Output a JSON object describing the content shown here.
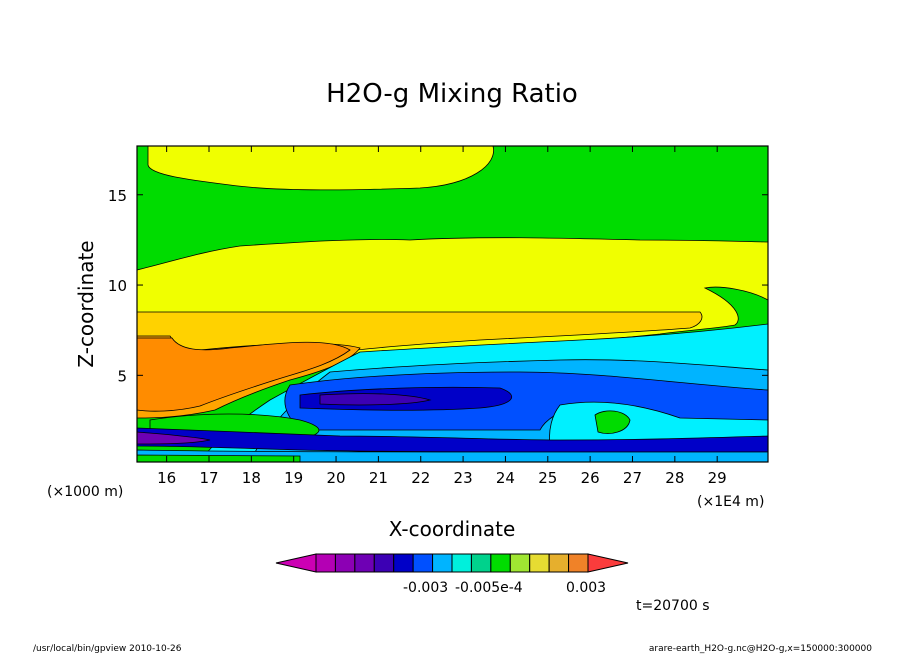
{
  "chart_data": {
    "type": "contour",
    "title": "H2O-g Mixing Ratio",
    "xlabel": "X-coordinate",
    "ylabel": "Z-coordinate",
    "x_unit_left": "(×1000 m)",
    "x_unit_right": "(×1E4 m)",
    "x_ticks": [
      "16",
      "17",
      "18",
      "19",
      "20",
      "21",
      "22",
      "23",
      "24",
      "25",
      "26",
      "27",
      "28",
      "29"
    ],
    "y_ticks": [
      "5",
      "10",
      "15"
    ],
    "xlim": [
      15.3,
      30.2
    ],
    "ylim": [
      0.2,
      17.7
    ],
    "colorbar": {
      "colors": [
        "#cc00b4",
        "#b400b4",
        "#8c00b4",
        "#6e00b4",
        "#3c00b4",
        "#0000c8",
        "#0050ff",
        "#00b4ff",
        "#00f0dc",
        "#00d28c",
        "#00dc00",
        "#a0e632",
        "#e6dc32",
        "#e6af2d",
        "#f08228",
        "#fa3c3c"
      ],
      "labels": [
        "-0.003",
        "-0.005e-4",
        "0.003"
      ]
    },
    "time_label": "t=20700 s",
    "footer_left": "/usr/local/bin/gpview  2010-10-26",
    "footer_right": "arare-earth_H2O-g.nc@H2O-g,x=150000:300000"
  }
}
